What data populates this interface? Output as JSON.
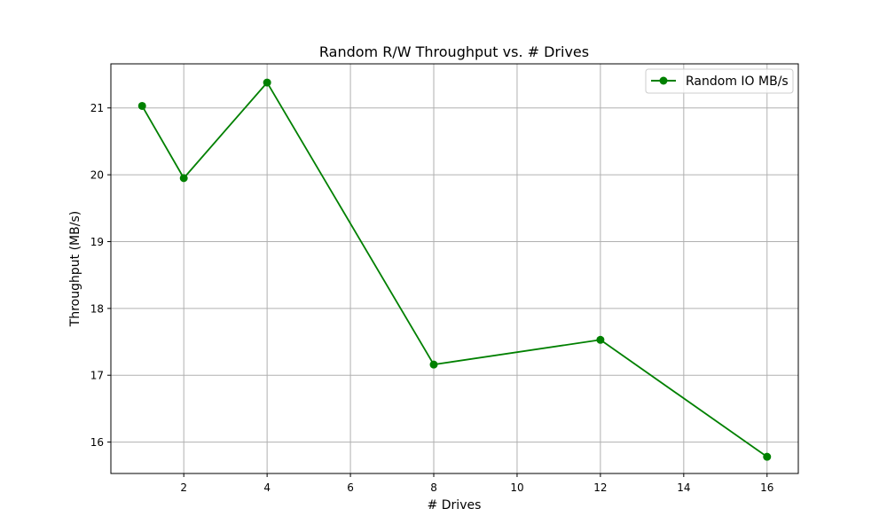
{
  "chart_data": {
    "type": "line",
    "title": "Random R/W Throughput vs. # Drives",
    "xlabel": "# Drives",
    "ylabel": "Throughput (MB/s)",
    "xlim": [
      0.25,
      16.75
    ],
    "ylim": [
      15.53,
      21.66
    ],
    "xticks": [
      2,
      4,
      6,
      8,
      10,
      12,
      14,
      16
    ],
    "yticks": [
      16,
      17,
      18,
      19,
      20,
      21
    ],
    "grid": true,
    "legend_position": "top-right",
    "series": [
      {
        "name": "Random IO MB/s",
        "color": "#008000",
        "marker": "circle",
        "x": [
          1,
          2,
          4,
          8,
          12,
          16
        ],
        "y": [
          21.03,
          19.95,
          21.38,
          17.16,
          17.53,
          15.78
        ]
      }
    ]
  }
}
